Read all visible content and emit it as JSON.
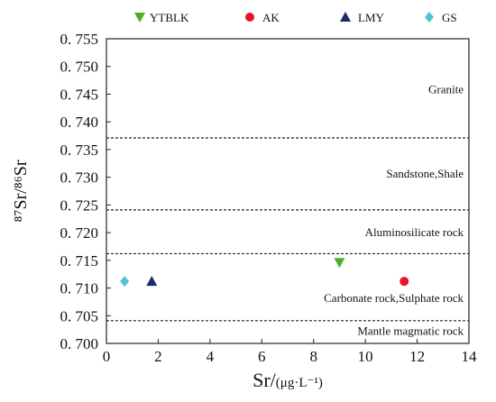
{
  "chart_data": {
    "type": "scatter",
    "title": "",
    "xlabel": "Sr/(μg·L⁻¹)",
    "ylabel": "⁸⁷Sr/⁸⁶Sr",
    "xlim": [
      0,
      14
    ],
    "ylim": [
      0.7,
      0.755
    ],
    "x_ticks": [
      "0",
      "2",
      "4",
      "6",
      "8",
      "10",
      "12",
      "14"
    ],
    "y_ticks": [
      "0. 700",
      "0. 705",
      "0. 710",
      "0. 715",
      "0. 720",
      "0. 725",
      "0. 730",
      "0. 735",
      "0. 740",
      "0. 745",
      "0. 750",
      "0. 755"
    ],
    "x_tick_values": [
      0,
      2,
      4,
      6,
      8,
      10,
      12,
      14
    ],
    "y_tick_values": [
      0.7,
      0.705,
      0.71,
      0.715,
      0.72,
      0.725,
      0.73,
      0.735,
      0.74,
      0.745,
      0.75,
      0.755
    ],
    "grid": false,
    "legend_position": "top",
    "series": [
      {
        "name": "YTBLK",
        "marker": "triangle-down",
        "color": "#4caf2a",
        "points": [
          [
            9.0,
            0.7146
          ]
        ]
      },
      {
        "name": "AK",
        "marker": "circle",
        "color": "#e8132a",
        "points": [
          [
            11.5,
            0.7112
          ]
        ]
      },
      {
        "name": "LMY",
        "marker": "triangle-up",
        "color": "#1a2a6c",
        "points": [
          [
            1.75,
            0.7112
          ]
        ]
      },
      {
        "name": "GS",
        "marker": "diamond",
        "color": "#4ec3d5",
        "points": [
          [
            0.7,
            0.7112
          ]
        ]
      }
    ],
    "boundaries": [
      0.7371,
      0.7241,
      0.7162,
      0.7041
    ],
    "regions": [
      {
        "label": "Granite",
        "y": 0.7458
      },
      {
        "label": "Sandstone,Shale",
        "y": 0.7306
      },
      {
        "label": "Aluminosilicate rock",
        "y": 0.72
      },
      {
        "label": "Carbonate rock,Sulphate rock",
        "y": 0.7081
      },
      {
        "label": "Mantle magmatic rock",
        "y": 0.7022
      }
    ]
  }
}
